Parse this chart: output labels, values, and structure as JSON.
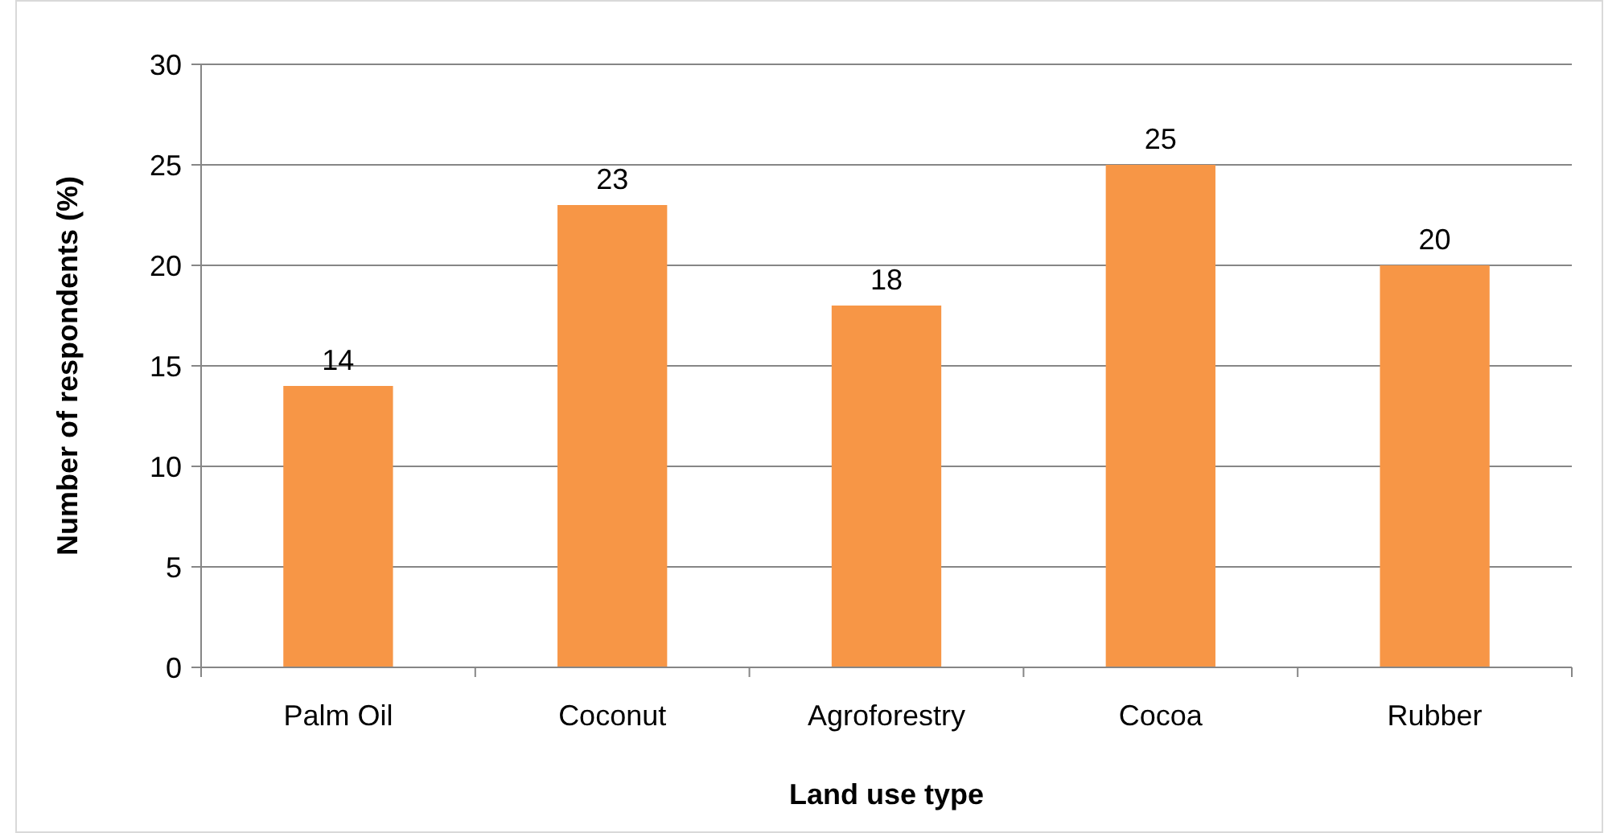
{
  "chart_data": {
    "type": "bar",
    "xlabel": "Land use type",
    "ylabel": "Number of respondents (%)",
    "categories": [
      "Palm Oil",
      "Coconut",
      "Agroforestry",
      "Cocoa",
      "Rubber"
    ],
    "values": [
      14,
      23,
      18,
      25,
      20
    ],
    "color": "#f79646",
    "ylim": [
      0,
      30
    ],
    "yticks": [
      0,
      5,
      10,
      15,
      20,
      25,
      30
    ],
    "grid": "y",
    "data_labels": true
  }
}
